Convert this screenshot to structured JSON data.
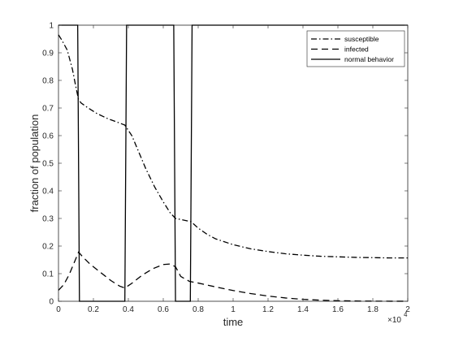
{
  "chart_data": {
    "type": "line",
    "xlabel": "time",
    "ylabel": "fraction of population",
    "x_multiplier_label": "×10",
    "x_multiplier_exp": "4",
    "xlim": [
      0,
      2
    ],
    "ylim": [
      0,
      1
    ],
    "xticks": [
      "0",
      "0.2",
      "0.4",
      "0.6",
      "0.8",
      "1",
      "1.2",
      "1.4",
      "1.6",
      "1.8",
      "2"
    ],
    "yticks": [
      "0",
      "0.1",
      "0.2",
      "0.3",
      "0.4",
      "0.5",
      "0.6",
      "0.7",
      "0.8",
      "0.9",
      "1"
    ],
    "grid": false,
    "legend_position": "top-right",
    "series": [
      {
        "name": "susceptible",
        "style": "dash-dot",
        "color": "#000000",
        "x": [
          0,
          0.02,
          0.05,
          0.08,
          0.1,
          0.115,
          0.13,
          0.17,
          0.22,
          0.28,
          0.34,
          0.38,
          0.42,
          0.46,
          0.5,
          0.55,
          0.6,
          0.64,
          0.67,
          0.71,
          0.76,
          0.8,
          0.85,
          0.9,
          1.0,
          1.1,
          1.2,
          1.3,
          1.4,
          1.5,
          1.6,
          1.7,
          1.8,
          1.9,
          2.0
        ],
        "y": [
          0.965,
          0.945,
          0.91,
          0.84,
          0.775,
          0.73,
          0.718,
          0.7,
          0.68,
          0.662,
          0.648,
          0.638,
          0.6,
          0.54,
          0.48,
          0.415,
          0.36,
          0.32,
          0.3,
          0.295,
          0.288,
          0.265,
          0.243,
          0.226,
          0.205,
          0.19,
          0.18,
          0.172,
          0.167,
          0.163,
          0.161,
          0.159,
          0.158,
          0.157,
          0.157
        ]
      },
      {
        "name": "infected",
        "style": "dashed",
        "color": "#000000",
        "x": [
          0,
          0.03,
          0.06,
          0.09,
          0.115,
          0.14,
          0.18,
          0.24,
          0.3,
          0.35,
          0.38,
          0.42,
          0.48,
          0.54,
          0.6,
          0.64,
          0.67,
          0.7,
          0.75,
          0.8,
          0.9,
          1.0,
          1.1,
          1.2,
          1.3,
          1.4,
          1.5,
          1.6,
          1.7,
          1.8,
          1.9,
          2.0
        ],
        "y": [
          0.04,
          0.06,
          0.095,
          0.14,
          0.178,
          0.16,
          0.135,
          0.105,
          0.075,
          0.055,
          0.048,
          0.065,
          0.095,
          0.118,
          0.133,
          0.135,
          0.125,
          0.09,
          0.072,
          0.066,
          0.052,
          0.039,
          0.028,
          0.019,
          0.012,
          0.007,
          0.004,
          0.002,
          0.001,
          0.0005,
          0.0002,
          0.0001
        ]
      },
      {
        "name": "normal behavior",
        "style": "solid",
        "color": "#000000",
        "x": [
          0,
          0.11,
          0.12,
          0.38,
          0.39,
          0.66,
          0.67,
          0.755,
          0.765,
          2.0
        ],
        "y": [
          1,
          1,
          0,
          0,
          1,
          1,
          0,
          0,
          1,
          1
        ]
      }
    ]
  }
}
